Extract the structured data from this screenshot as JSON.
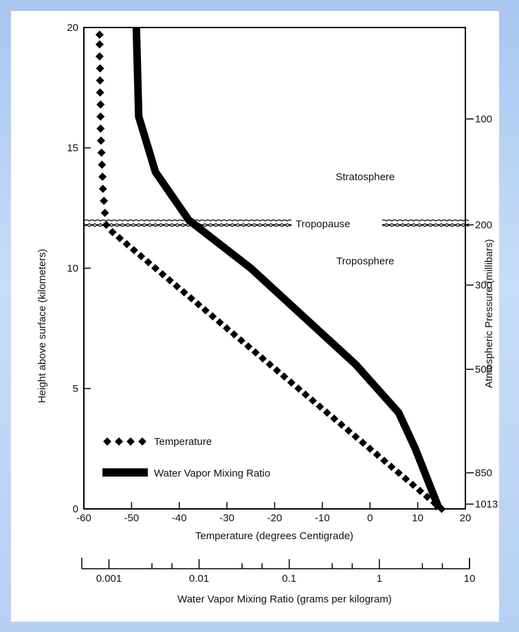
{
  "chart_data": {
    "type": "line",
    "xlabel": "Temperature (degrees Centigrade)",
    "ylabel": "Height above surface (kilometers)",
    "y2label": "Atmospheric Pressure (millibars)",
    "secondary_xlabel": "Water Vapor Mixing Ratio (grams per kilogram)",
    "xlim": [
      -60,
      20
    ],
    "ylim": [
      0,
      20
    ],
    "x_ticks": [
      -60,
      -50,
      -40,
      -30,
      -20,
      -10,
      0,
      10,
      20
    ],
    "y_ticks": [
      0,
      5,
      10,
      15,
      20
    ],
    "pressure_ticks": [
      {
        "label": "100",
        "height_km": 16.2
      },
      {
        "label": "200",
        "height_km": 11.8
      },
      {
        "label": "300",
        "height_km": 9.3
      },
      {
        "label": "500",
        "height_km": 5.8
      },
      {
        "label": "850",
        "height_km": 1.5
      },
      {
        "label": "1013",
        "height_km": 0.2
      }
    ],
    "mixing_ratio_axis": {
      "scale": "log",
      "range": [
        0.0005,
        10
      ],
      "labeled_ticks": [
        {
          "label": "0.001",
          "value": 0.001
        },
        {
          "label": "0.01",
          "value": 0.01
        },
        {
          "label": "0.1",
          "value": 0.1
        },
        {
          "label": "1",
          "value": 1
        },
        {
          "label": "10",
          "value": 10
        }
      ],
      "minor_ticks": [
        0.003,
        0.005,
        0.03,
        0.05,
        0.3,
        0.5,
        3,
        5
      ]
    },
    "series": [
      {
        "name": "Temperature",
        "marker": "diamond",
        "points": [
          {
            "x": 15,
            "y": 0
          },
          {
            "x": 13.5,
            "y": 0.25
          },
          {
            "x": 12,
            "y": 0.5
          },
          {
            "x": 10.5,
            "y": 0.75
          },
          {
            "x": 9,
            "y": 1.0
          },
          {
            "x": 7.5,
            "y": 1.25
          },
          {
            "x": 6,
            "y": 1.5
          },
          {
            "x": 4.5,
            "y": 1.75
          },
          {
            "x": 3,
            "y": 2.0
          },
          {
            "x": 1.5,
            "y": 2.25
          },
          {
            "x": 0,
            "y": 2.5
          },
          {
            "x": -1.5,
            "y": 2.75
          },
          {
            "x": -3,
            "y": 3.0
          },
          {
            "x": -4.5,
            "y": 3.25
          },
          {
            "x": -6,
            "y": 3.5
          },
          {
            "x": -7.5,
            "y": 3.75
          },
          {
            "x": -9,
            "y": 4.0
          },
          {
            "x": -10.5,
            "y": 4.25
          },
          {
            "x": -12,
            "y": 4.5
          },
          {
            "x": -13.5,
            "y": 4.75
          },
          {
            "x": -15,
            "y": 5.0
          },
          {
            "x": -16.5,
            "y": 5.25
          },
          {
            "x": -18,
            "y": 5.5
          },
          {
            "x": -19.5,
            "y": 5.75
          },
          {
            "x": -21,
            "y": 6.0
          },
          {
            "x": -22.5,
            "y": 6.25
          },
          {
            "x": -24,
            "y": 6.5
          },
          {
            "x": -25.5,
            "y": 6.75
          },
          {
            "x": -27,
            "y": 7.0
          },
          {
            "x": -28.5,
            "y": 7.25
          },
          {
            "x": -30,
            "y": 7.5
          },
          {
            "x": -31.5,
            "y": 7.75
          },
          {
            "x": -33,
            "y": 8.0
          },
          {
            "x": -34.5,
            "y": 8.25
          },
          {
            "x": -36,
            "y": 8.5
          },
          {
            "x": -37.5,
            "y": 8.75
          },
          {
            "x": -39,
            "y": 9.0
          },
          {
            "x": -40.5,
            "y": 9.25
          },
          {
            "x": -42,
            "y": 9.5
          },
          {
            "x": -43.5,
            "y": 9.75
          },
          {
            "x": -45,
            "y": 10.0
          },
          {
            "x": -46.5,
            "y": 10.25
          },
          {
            "x": -48,
            "y": 10.5
          },
          {
            "x": -49.5,
            "y": 10.75
          },
          {
            "x": -51,
            "y": 11.0
          },
          {
            "x": -52.5,
            "y": 11.25
          },
          {
            "x": -54,
            "y": 11.5
          },
          {
            "x": -55.3,
            "y": 11.8
          },
          {
            "x": -55.6,
            "y": 12.3
          },
          {
            "x": -55.8,
            "y": 12.8
          },
          {
            "x": -56.0,
            "y": 13.3
          },
          {
            "x": -56.1,
            "y": 13.8
          },
          {
            "x": -56.2,
            "y": 14.3
          },
          {
            "x": -56.3,
            "y": 14.8
          },
          {
            "x": -56.4,
            "y": 15.3
          },
          {
            "x": -56.5,
            "y": 15.8
          },
          {
            "x": -56.5,
            "y": 16.3
          },
          {
            "x": -56.5,
            "y": 16.8
          },
          {
            "x": -56.6,
            "y": 17.3
          },
          {
            "x": -56.6,
            "y": 17.8
          },
          {
            "x": -56.6,
            "y": 18.3
          },
          {
            "x": -56.7,
            "y": 18.8
          },
          {
            "x": -56.7,
            "y": 19.3
          },
          {
            "x": -56.7,
            "y": 19.7
          }
        ]
      },
      {
        "name": "Water Vapor Mixing Ratio",
        "marker": "none",
        "points": [
          {
            "x": 14.5,
            "y": 0
          },
          {
            "x": 9.5,
            "y": 2.5
          },
          {
            "x": 6,
            "y": 4
          },
          {
            "x": -3,
            "y": 6
          },
          {
            "x": -14,
            "y": 8
          },
          {
            "x": -25,
            "y": 10
          },
          {
            "x": -38,
            "y": 12
          },
          {
            "x": -45,
            "y": 14
          },
          {
            "x": -48.5,
            "y": 16.3
          },
          {
            "x": -49,
            "y": 20
          }
        ]
      }
    ],
    "legend": {
      "position": "bottom-left",
      "entries": [
        "Temperature",
        "Water Vapor Mixing Ratio"
      ]
    },
    "annotations": [
      {
        "text": "Stratosphere",
        "x": -1,
        "y": 13.8
      },
      {
        "text": "Tropopause",
        "x": -12,
        "y": 11.85
      },
      {
        "text": "Troposphere",
        "x": -1,
        "y": 10.3
      }
    ],
    "tropopause_height_km": 11.85
  }
}
